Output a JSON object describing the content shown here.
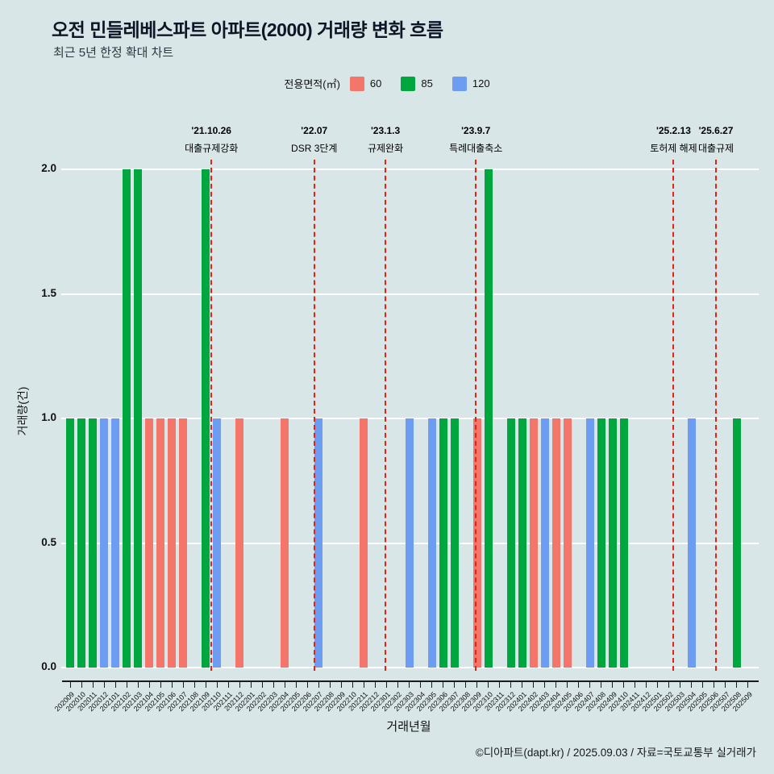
{
  "chart_data": {
    "type": "bar",
    "title": "오전 민들레베스파트 아파트(2000) 거래량 변화 흐름",
    "subtitle": "최근 5년 한정 확대 차트",
    "xlabel": "거래년월",
    "ylabel": "거래량(건)",
    "credit": "©디아파트(dapt.kr) / 2025.09.03 / 자료=국토교통부 실거래가",
    "ylim": [
      0,
      2
    ],
    "y_ticks": [
      "0.0",
      "0.5",
      "1.0",
      "1.5",
      "2.0"
    ],
    "legend": {
      "title": "전용면적(㎡)",
      "labels": [
        "60",
        "85",
        "120"
      ]
    },
    "area_colors": {
      "60": "#f4766b",
      "85": "#00a63e",
      "120": "#6d9df2"
    },
    "colors": {
      "background": "#d9e6e7",
      "grid": "#ffffff",
      "axis": "#1a1a1a",
      "event": "#e42313",
      "text": "#111111"
    },
    "x_ticks": [
      "202009",
      "202010",
      "202011",
      "202012",
      "202101",
      "202102",
      "202103",
      "202104",
      "202105",
      "202106",
      "202107",
      "202108",
      "202109",
      "202110",
      "202111",
      "202112",
      "202201",
      "202202",
      "202203",
      "202204",
      "202205",
      "202206",
      "202207",
      "202208",
      "202209",
      "202210",
      "202211",
      "202212",
      "202301",
      "202302",
      "202303",
      "202304",
      "202305",
      "202306",
      "202307",
      "202308",
      "202309",
      "202310",
      "202311",
      "202312",
      "202401",
      "202402",
      "202403",
      "202404",
      "202405",
      "202406",
      "202407",
      "202408",
      "202409",
      "202410",
      "202411",
      "202412",
      "202501",
      "202502",
      "202503",
      "202504",
      "202505",
      "202506",
      "202507",
      "202508",
      "202509"
    ],
    "bars": [
      {
        "month": "202009",
        "area": "85",
        "value": 1
      },
      {
        "month": "202010",
        "area": "85",
        "value": 1
      },
      {
        "month": "202011",
        "area": "85",
        "value": 1
      },
      {
        "month": "202012",
        "area": "120",
        "value": 1
      },
      {
        "month": "202101",
        "area": "120",
        "value": 1
      },
      {
        "month": "202102",
        "area": "85",
        "value": 2
      },
      {
        "month": "202103",
        "area": "85",
        "value": 2
      },
      {
        "month": "202104",
        "area": "60",
        "value": 1
      },
      {
        "month": "202105",
        "area": "60",
        "value": 1
      },
      {
        "month": "202106",
        "area": "60",
        "value": 1
      },
      {
        "month": "202107",
        "area": "60",
        "value": 1
      },
      {
        "month": "202109",
        "area": "85",
        "value": 2
      },
      {
        "month": "202110",
        "area": "120",
        "value": 1
      },
      {
        "month": "202112",
        "area": "60",
        "value": 1
      },
      {
        "month": "202204",
        "area": "60",
        "value": 1
      },
      {
        "month": "202207",
        "area": "120",
        "value": 1
      },
      {
        "month": "202211",
        "area": "60",
        "value": 1
      },
      {
        "month": "202303",
        "area": "120",
        "value": 1
      },
      {
        "month": "202305",
        "area": "120",
        "value": 1
      },
      {
        "month": "202306",
        "area": "85",
        "value": 1
      },
      {
        "month": "202307",
        "area": "85",
        "value": 1
      },
      {
        "month": "202309",
        "area": "60",
        "value": 1
      },
      {
        "month": "202310",
        "area": "85",
        "value": 2
      },
      {
        "month": "202312",
        "area": "85",
        "value": 1
      },
      {
        "month": "202401",
        "area": "85",
        "value": 1
      },
      {
        "month": "202402",
        "area": "60",
        "value": 1
      },
      {
        "month": "202403",
        "area": "120",
        "value": 1
      },
      {
        "month": "202404",
        "area": "60",
        "value": 1
      },
      {
        "month": "202405",
        "area": "60",
        "value": 1
      },
      {
        "month": "202407",
        "area": "120",
        "value": 1
      },
      {
        "month": "202408",
        "area": "85",
        "value": 1
      },
      {
        "month": "202409",
        "area": "85",
        "value": 1
      },
      {
        "month": "202410",
        "area": "85",
        "value": 1
      },
      {
        "month": "202504",
        "area": "120",
        "value": 1
      },
      {
        "month": "202508",
        "area": "85",
        "value": 1
      }
    ],
    "events": [
      {
        "date": "'21.10.26",
        "label": "대출규제강화",
        "pos": 13.0
      },
      {
        "date": "'22.07",
        "label": "DSR 3단계",
        "pos": 22.1
      },
      {
        "date": "'23.1.3",
        "label": "규제완화",
        "pos": 28.4
      },
      {
        "date": "'23.9.7",
        "label": "특례대출축소",
        "pos": 36.4
      },
      {
        "date": "'25.2.13",
        "label": "토허제 해제",
        "pos": 53.9
      },
      {
        "date": "'25.6.27",
        "label": "대출규제",
        "pos": 57.65
      }
    ]
  }
}
